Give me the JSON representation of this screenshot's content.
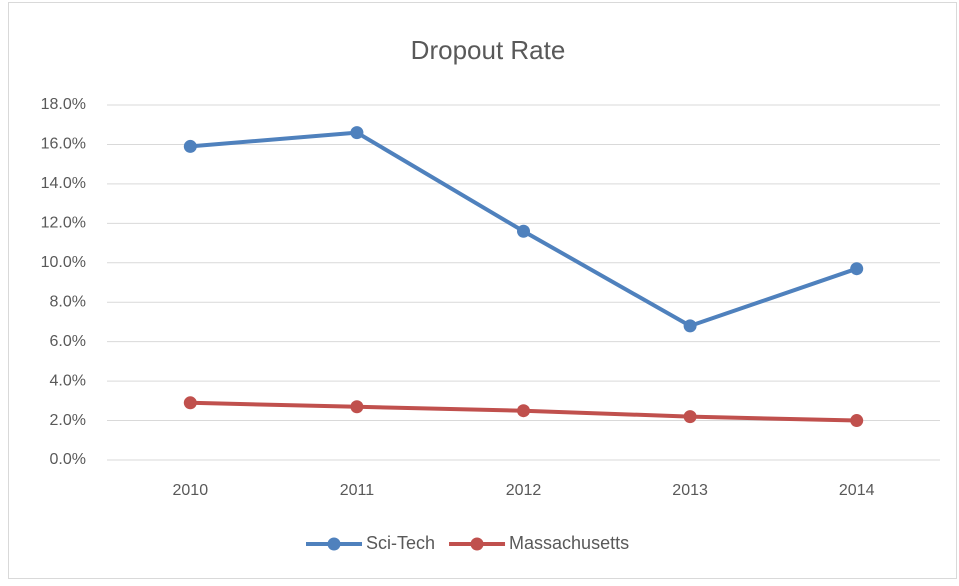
{
  "chart_data": {
    "type": "line",
    "title": "Dropout Rate",
    "categories": [
      "2010",
      "2011",
      "2012",
      "2013",
      "2014"
    ],
    "series": [
      {
        "name": "Sci-Tech",
        "color": "#4f81bd",
        "values": [
          15.9,
          16.6,
          11.6,
          6.8,
          9.7
        ]
      },
      {
        "name": "Massachusetts",
        "color": "#c0504d",
        "values": [
          2.9,
          2.7,
          2.5,
          2.2,
          2.0
        ]
      }
    ],
    "ylim": [
      0,
      18
    ],
    "yticks": [
      {
        "value": 0,
        "label": "0.0%"
      },
      {
        "value": 2,
        "label": "2.0%"
      },
      {
        "value": 4,
        "label": "4.0%"
      },
      {
        "value": 6,
        "label": "6.0%"
      },
      {
        "value": 8,
        "label": "8.0%"
      },
      {
        "value": 10,
        "label": "10.0%"
      },
      {
        "value": 12,
        "label": "12.0%"
      },
      {
        "value": 14,
        "label": "14.0%"
      },
      {
        "value": 16,
        "label": "16.0%"
      },
      {
        "value": 18,
        "label": "18.0%"
      }
    ],
    "grid": true,
    "legend": "bottom"
  }
}
